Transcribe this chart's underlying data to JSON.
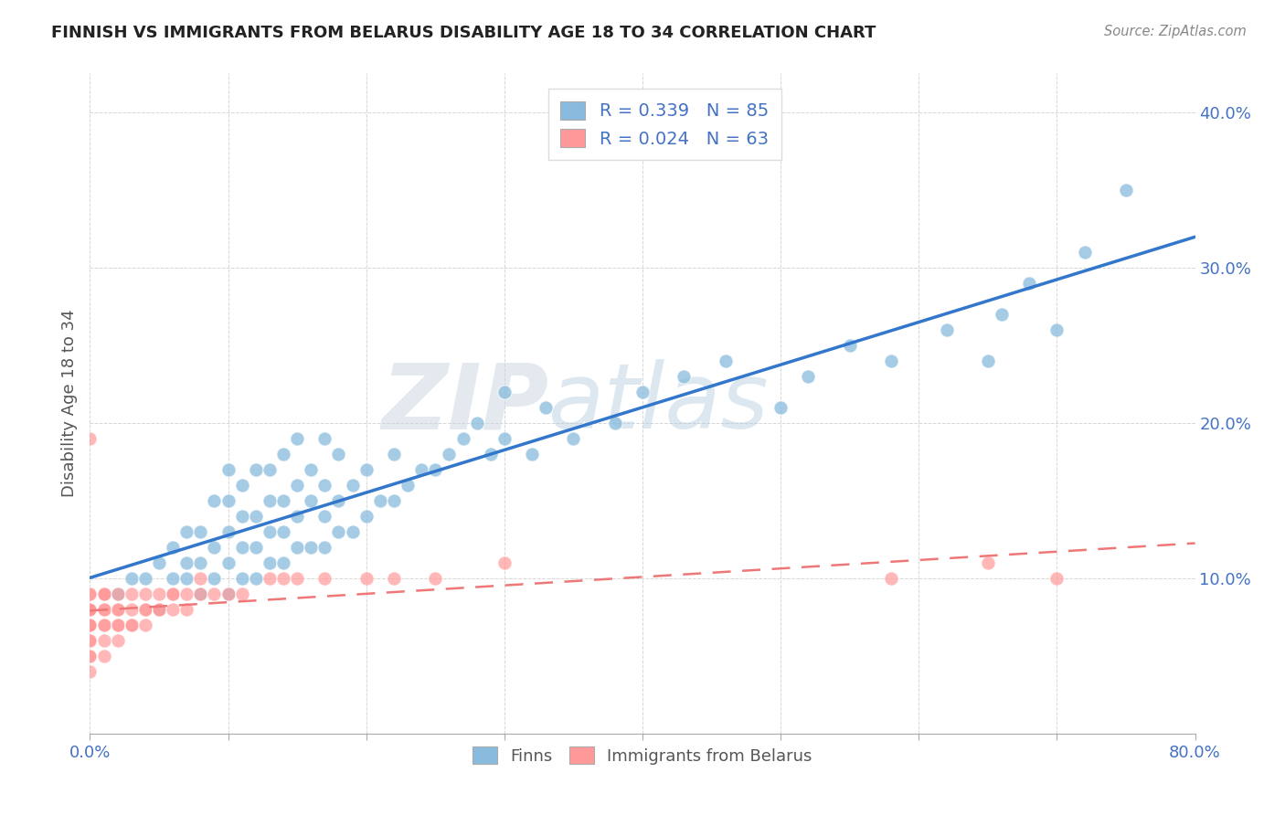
{
  "title": "FINNISH VS IMMIGRANTS FROM BELARUS DISABILITY AGE 18 TO 34 CORRELATION CHART",
  "source": "Source: ZipAtlas.com",
  "ylabel": "Disability Age 18 to 34",
  "xlim": [
    0.0,
    0.8
  ],
  "ylim": [
    0.0,
    0.425
  ],
  "color_finns": "#88bbdd",
  "color_immigrants": "#ff9999",
  "color_line_finns": "#3377cc",
  "color_line_immigrants": "#ee7777",
  "R_finns": 0.339,
  "N_finns": 85,
  "R_immigrants": 0.024,
  "N_immigrants": 63,
  "watermark_zip": "ZIP",
  "watermark_atlas": "atlas",
  "background_color": "#ffffff",
  "finns_x": [
    0.02,
    0.03,
    0.04,
    0.05,
    0.05,
    0.06,
    0.06,
    0.07,
    0.07,
    0.07,
    0.08,
    0.08,
    0.08,
    0.09,
    0.09,
    0.09,
    0.1,
    0.1,
    0.1,
    0.1,
    0.1,
    0.11,
    0.11,
    0.11,
    0.11,
    0.12,
    0.12,
    0.12,
    0.12,
    0.13,
    0.13,
    0.13,
    0.13,
    0.14,
    0.14,
    0.14,
    0.14,
    0.15,
    0.15,
    0.15,
    0.15,
    0.16,
    0.16,
    0.16,
    0.17,
    0.17,
    0.17,
    0.17,
    0.18,
    0.18,
    0.18,
    0.19,
    0.19,
    0.2,
    0.2,
    0.21,
    0.22,
    0.22,
    0.23,
    0.24,
    0.25,
    0.26,
    0.27,
    0.28,
    0.29,
    0.3,
    0.3,
    0.32,
    0.33,
    0.35,
    0.38,
    0.4,
    0.43,
    0.46,
    0.5,
    0.52,
    0.55,
    0.58,
    0.62,
    0.65,
    0.66,
    0.68,
    0.7,
    0.72,
    0.75
  ],
  "finns_y": [
    0.09,
    0.1,
    0.1,
    0.11,
    0.08,
    0.1,
    0.12,
    0.1,
    0.11,
    0.13,
    0.09,
    0.11,
    0.13,
    0.1,
    0.12,
    0.15,
    0.09,
    0.11,
    0.13,
    0.15,
    0.17,
    0.1,
    0.12,
    0.14,
    0.16,
    0.1,
    0.12,
    0.14,
    0.17,
    0.11,
    0.13,
    0.15,
    0.17,
    0.11,
    0.13,
    0.15,
    0.18,
    0.12,
    0.14,
    0.16,
    0.19,
    0.12,
    0.15,
    0.17,
    0.12,
    0.14,
    0.16,
    0.19,
    0.13,
    0.15,
    0.18,
    0.13,
    0.16,
    0.14,
    0.17,
    0.15,
    0.15,
    0.18,
    0.16,
    0.17,
    0.17,
    0.18,
    0.19,
    0.2,
    0.18,
    0.19,
    0.22,
    0.18,
    0.21,
    0.19,
    0.2,
    0.22,
    0.23,
    0.24,
    0.21,
    0.23,
    0.25,
    0.24,
    0.26,
    0.24,
    0.27,
    0.29,
    0.26,
    0.31,
    0.35
  ],
  "immigrants_x": [
    0.0,
    0.0,
    0.0,
    0.0,
    0.0,
    0.0,
    0.0,
    0.0,
    0.0,
    0.0,
    0.0,
    0.0,
    0.0,
    0.0,
    0.0,
    0.0,
    0.01,
    0.01,
    0.01,
    0.01,
    0.01,
    0.01,
    0.01,
    0.01,
    0.01,
    0.02,
    0.02,
    0.02,
    0.02,
    0.02,
    0.02,
    0.03,
    0.03,
    0.03,
    0.03,
    0.04,
    0.04,
    0.04,
    0.04,
    0.05,
    0.05,
    0.05,
    0.06,
    0.06,
    0.06,
    0.07,
    0.07,
    0.08,
    0.08,
    0.09,
    0.1,
    0.11,
    0.13,
    0.14,
    0.15,
    0.17,
    0.2,
    0.22,
    0.25,
    0.3,
    0.58,
    0.65,
    0.7
  ],
  "immigrants_y": [
    0.04,
    0.05,
    0.05,
    0.06,
    0.06,
    0.07,
    0.07,
    0.07,
    0.07,
    0.08,
    0.08,
    0.08,
    0.08,
    0.09,
    0.09,
    0.19,
    0.05,
    0.06,
    0.07,
    0.07,
    0.08,
    0.08,
    0.09,
    0.09,
    0.09,
    0.06,
    0.07,
    0.07,
    0.08,
    0.08,
    0.09,
    0.07,
    0.07,
    0.08,
    0.09,
    0.07,
    0.08,
    0.08,
    0.09,
    0.08,
    0.08,
    0.09,
    0.08,
    0.09,
    0.09,
    0.08,
    0.09,
    0.09,
    0.1,
    0.09,
    0.09,
    0.09,
    0.1,
    0.1,
    0.1,
    0.1,
    0.1,
    0.1,
    0.1,
    0.11,
    0.1,
    0.11,
    0.1
  ]
}
